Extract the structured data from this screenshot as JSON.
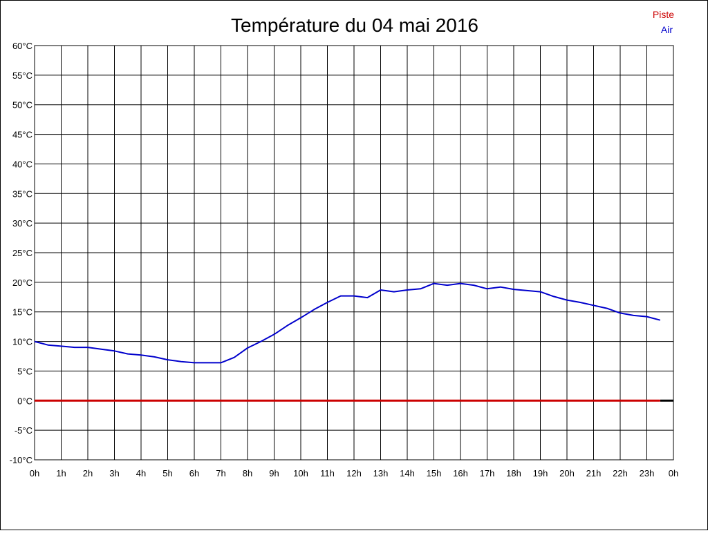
{
  "chart_data": {
    "type": "line",
    "title": "Température du 04 mai 2016",
    "xlabel": "",
    "ylabel": "",
    "ylim": [
      -10,
      60
    ],
    "xlim": [
      0,
      24
    ],
    "grid": true,
    "legend_placement": "top-right",
    "y_ticks": [
      -10,
      -5,
      0,
      5,
      10,
      15,
      20,
      25,
      30,
      35,
      40,
      45,
      50,
      55,
      60
    ],
    "y_tick_labels": [
      "-10°C",
      "-5°C",
      "0°C",
      "5°C",
      "10°C",
      "15°C",
      "20°C",
      "25°C",
      "30°C",
      "35°C",
      "40°C",
      "45°C",
      "50°C",
      "55°C",
      "60°C"
    ],
    "x_ticks": [
      0,
      1,
      2,
      3,
      4,
      5,
      6,
      7,
      8,
      9,
      10,
      11,
      12,
      13,
      14,
      15,
      16,
      17,
      18,
      19,
      20,
      21,
      22,
      23,
      24
    ],
    "x_tick_labels": [
      "0h",
      "1h",
      "2h",
      "3h",
      "4h",
      "5h",
      "6h",
      "7h",
      "8h",
      "9h",
      "10h",
      "11h",
      "12h",
      "13h",
      "14h",
      "15h",
      "16h",
      "17h",
      "18h",
      "19h",
      "20h",
      "21h",
      "22h",
      "23h",
      "0h"
    ],
    "series": [
      {
        "name": "Piste",
        "color": "#cc0000",
        "x": [
          0,
          0.5,
          1,
          1.5,
          2,
          2.5,
          3,
          3.5,
          4,
          4.5,
          5,
          5.5,
          6,
          6.5,
          7,
          7.5,
          8,
          8.5,
          9,
          9.5,
          10,
          10.5,
          11,
          11.5,
          12,
          12.5,
          13,
          13.5,
          14,
          14.5,
          15,
          15.5,
          16,
          16.5,
          17,
          17.5,
          18,
          18.5,
          19,
          19.5,
          20,
          20.5,
          21,
          21.5,
          22,
          22.5,
          23,
          23.5
        ],
        "y": [
          0,
          0,
          0,
          0,
          0,
          0,
          0,
          0,
          0,
          0,
          0,
          0,
          0,
          0,
          0,
          0,
          0,
          0,
          0,
          0,
          0,
          0,
          0,
          0,
          0,
          0,
          0,
          0,
          0,
          0,
          0,
          0,
          0,
          0,
          0,
          0,
          0,
          0,
          0,
          0,
          0,
          0,
          0,
          0,
          0,
          0,
          0,
          0
        ]
      },
      {
        "name": "Air",
        "color": "#0000cc",
        "x": [
          0,
          0.5,
          1,
          1.5,
          2,
          2.5,
          3,
          3.5,
          4,
          4.5,
          5,
          5.5,
          6,
          6.5,
          7,
          7.5,
          8,
          8.5,
          9,
          9.5,
          10,
          10.5,
          11,
          11.5,
          12,
          12.5,
          13,
          13.5,
          14,
          14.5,
          15,
          15.5,
          16,
          16.5,
          17,
          17.5,
          18,
          18.5,
          19,
          19.5,
          20,
          20.5,
          21,
          21.5,
          22,
          22.5,
          23,
          23.5
        ],
        "y": [
          10.0,
          9.4,
          9.2,
          9.0,
          9.0,
          8.7,
          8.4,
          7.9,
          7.7,
          7.4,
          6.9,
          6.6,
          6.4,
          6.4,
          6.4,
          7.3,
          8.9,
          10.0,
          11.2,
          12.7,
          14.0,
          15.4,
          16.6,
          17.7,
          17.7,
          17.4,
          18.7,
          18.4,
          18.7,
          18.9,
          19.8,
          19.5,
          19.8,
          19.5,
          18.9,
          19.2,
          18.8,
          18.6,
          18.4,
          17.6,
          17.0,
          16.6,
          16.1,
          15.6,
          14.8,
          14.4,
          14.2,
          13.6
        ]
      }
    ]
  }
}
